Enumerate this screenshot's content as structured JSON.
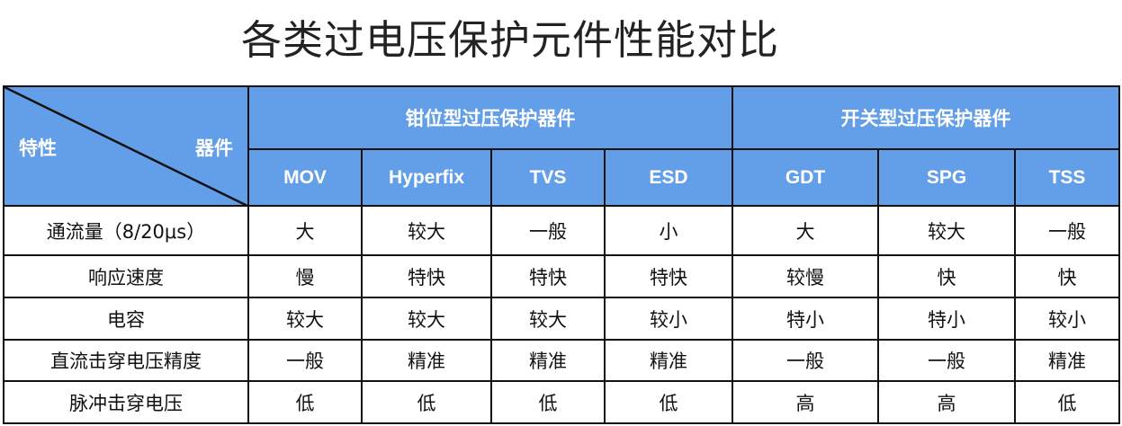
{
  "title": "各类过电压保护元件性能对比",
  "header": {
    "corner_left": "特性",
    "corner_right": "器件",
    "group1": "钳位型过压保护器件",
    "group2": "开关型过压保护器件",
    "columns": [
      "MOV",
      "Hyperfix",
      "TVS",
      "ESD",
      "GDT",
      "SPG",
      "TSS"
    ]
  },
  "rows": [
    {
      "label": "通流量（8/20μs）",
      "values": [
        "大",
        "较大",
        "一般",
        "小",
        "大",
        "较大",
        "一般"
      ]
    },
    {
      "label": "响应速度",
      "values": [
        "慢",
        "特快",
        "特快",
        "特快",
        "较慢",
        "快",
        "快"
      ]
    },
    {
      "label": "电容",
      "values": [
        "较大",
        "较大",
        "较大",
        "较小",
        "特小",
        "特小",
        "较小"
      ]
    },
    {
      "label": "直流击穿电压精度",
      "values": [
        "一般",
        "精准",
        "精准",
        "精准",
        "一般",
        "一般",
        "精准"
      ]
    },
    {
      "label": "脉冲击穿电压",
      "values": [
        "低",
        "低",
        "低",
        "低",
        "高",
        "高",
        "低"
      ]
    }
  ],
  "colors": {
    "header_bg": "#639ee8",
    "header_text": "#ffffff"
  }
}
